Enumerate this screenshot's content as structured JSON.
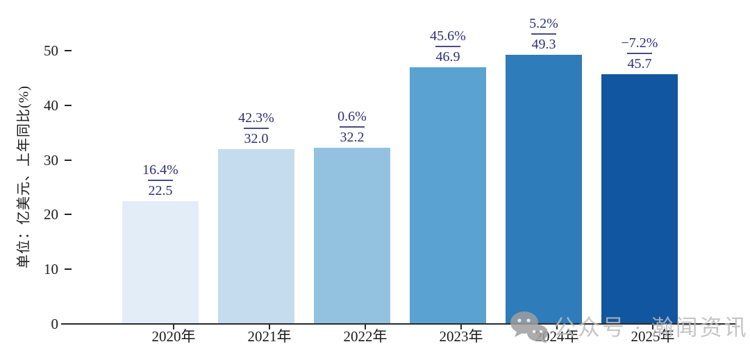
{
  "chart_data": {
    "type": "bar",
    "categories": [
      "2020年",
      "2021年",
      "2022年",
      "2023年",
      "2024年",
      "2025年"
    ],
    "values": [
      22.5,
      32.0,
      32.2,
      46.9,
      49.3,
      45.7
    ],
    "value_labels": [
      "22.5",
      "32.0",
      "32.2",
      "46.9",
      "49.3",
      "45.7"
    ],
    "yoy_labels": [
      "16.4%",
      "42.3%",
      "0.6%",
      "45.6%",
      "5.2%",
      "−7.2%"
    ],
    "bar_colors": [
      "#e3edf8",
      "#c5dbee",
      "#92c2e0",
      "#5aa2d2",
      "#2e7cba",
      "#1156a0"
    ],
    "title": "",
    "xlabel": "",
    "ylabel": "单位：亿美元、上年同比(%)",
    "yticks": [
      0,
      10,
      20,
      30,
      40,
      50
    ],
    "ylim": [
      0,
      52.5
    ],
    "grid": false,
    "legend_position": "none",
    "annotation_color": "#2f2f7a",
    "annotation_line_color": "#4a4a85"
  },
  "watermark": {
    "icon": "wechat-icon",
    "text": "公众号 · 瀚闻资讯",
    "text_color": "#bcbcbc",
    "icon_color": "#9e9e9e"
  }
}
